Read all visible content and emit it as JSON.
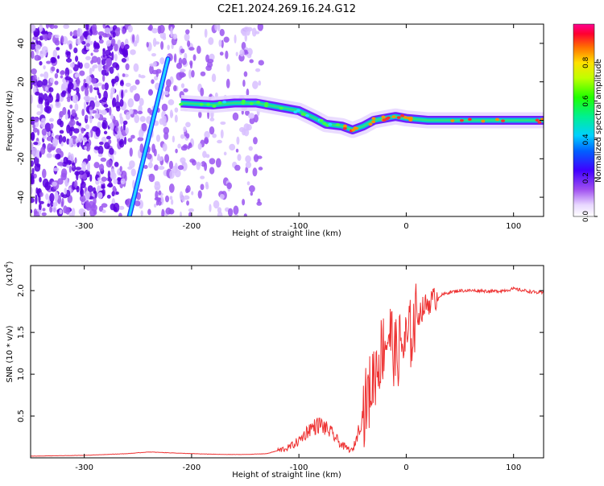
{
  "title": "C2E1.2024.269.16.24.G12",
  "chart_data": [
    {
      "type": "heatmap",
      "xlabel": "Height of straight line (km)",
      "ylabel": "Frequency (Hz)",
      "xlim": [
        -350,
        128
      ],
      "ylim": [
        -50,
        50
      ],
      "xticks": [
        -300,
        -200,
        -100,
        0,
        100
      ],
      "yticks": [
        -40,
        -20,
        0,
        20,
        40
      ],
      "colorbar": {
        "label": "Normalized spectral amplitude",
        "range": [
          0.0,
          1.0
        ],
        "ticks": [
          "0.0",
          "0.2",
          "0.4",
          "0.6",
          "0.8"
        ]
      },
      "features": {
        "noise_region_x": [
          -350,
          -135
        ],
        "diagonal_track": {
          "from": [
            -258,
            -50
          ],
          "to": [
            -222,
            32
          ]
        },
        "main_band_centerline": [
          [
            -210,
            9
          ],
          [
            -180,
            8
          ],
          [
            -160,
            9
          ],
          [
            -140,
            9
          ],
          [
            -120,
            7
          ],
          [
            -100,
            5
          ],
          [
            -85,
            1
          ],
          [
            -75,
            -2
          ],
          [
            -60,
            -3
          ],
          [
            -50,
            -5
          ],
          [
            -40,
            -3
          ],
          [
            -30,
            0
          ],
          [
            -20,
            1
          ],
          [
            -10,
            2
          ],
          [
            0,
            1
          ],
          [
            20,
            0
          ],
          [
            60,
            0
          ],
          [
            100,
            0
          ],
          [
            128,
            0
          ]
        ]
      }
    },
    {
      "type": "line",
      "xlabel": "Height of straight line (km)",
      "ylabel": "SNR (10 * v/v)",
      "yscale_label": "(x10",
      "yscale_exponent": "4",
      "xlim": [
        -350,
        128
      ],
      "ylim": [
        0,
        2.3
      ],
      "xticks": [
        -300,
        -200,
        -100,
        0,
        100
      ],
      "yticks": [
        "0.5",
        "1.0",
        "1.5",
        "2.0"
      ],
      "series_color": "#ee3333",
      "series": [
        {
          "x": [
            -350,
            -300,
            -260,
            -240,
            -220,
            -200,
            -170,
            -150,
            -130,
            -110,
            -100,
            -90,
            -80,
            -70,
            -60,
            -50,
            -45,
            -40,
            -35,
            -30,
            -25,
            -20,
            -15,
            -10,
            -5,
            0,
            5,
            10,
            20,
            30,
            40,
            50,
            60,
            70,
            80,
            90,
            100,
            110,
            120,
            128
          ],
          "y": [
            0.02,
            0.03,
            0.05,
            0.07,
            0.06,
            0.05,
            0.04,
            0.04,
            0.05,
            0.12,
            0.2,
            0.35,
            0.4,
            0.3,
            0.15,
            0.08,
            0.3,
            0.55,
            0.75,
            1.0,
            1.2,
            1.4,
            1.5,
            1.2,
            1.35,
            1.35,
            1.5,
            1.7,
            1.85,
            1.93,
            1.98,
            2.0,
            2.0,
            2.0,
            1.99,
            2.0,
            2.02,
            2.0,
            1.98,
            1.97
          ]
        }
      ]
    }
  ]
}
